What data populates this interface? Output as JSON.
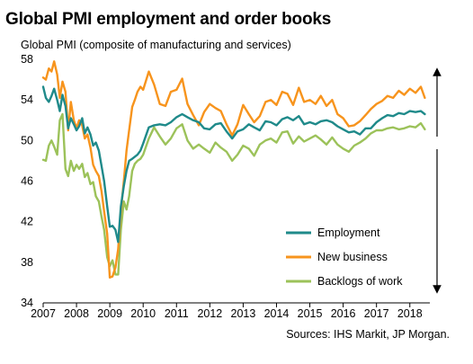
{
  "title": "Global PMI employment and order books",
  "subtitle": "Global  PMI (composite of manufacturing and services)",
  "source": "Sources: IHS Markit, JP Morgan.",
  "colors": {
    "employment": "#1f8a8a",
    "new_business": "#f7941d",
    "backlogs": "#9cc25a",
    "arrow": "#000000"
  },
  "chart_data": {
    "type": "line",
    "title": "Global PMI employment and order books",
    "ylabel": "Global  PMI (composite of manufacturing and services)",
    "xlabel": "",
    "ylim": [
      34,
      58
    ],
    "yticks": [
      34,
      38,
      42,
      46,
      50,
      54,
      58
    ],
    "xlim": [
      2007,
      2018.6
    ],
    "xticks": [
      "2007",
      "2008",
      "2009",
      "2010",
      "2011",
      "2012",
      "2013",
      "2014",
      "2015",
      "2016",
      "2017",
      "2018"
    ],
    "grid": false,
    "legend_position": "bottom-right",
    "legend": [
      "Employment",
      "New business",
      "Backlogs of work"
    ],
    "annotations": [
      "Double-headed vertical arrow on right side (above and below 50)"
    ],
    "series": [
      {
        "name": "Employment",
        "color": "#1f8a8a",
        "x": [
          2007.0,
          2007.08,
          2007.17,
          2007.25,
          2007.33,
          2007.42,
          2007.5,
          2007.58,
          2007.67,
          2007.75,
          2007.83,
          2007.92,
          2008.0,
          2008.08,
          2008.17,
          2008.25,
          2008.33,
          2008.42,
          2008.5,
          2008.58,
          2008.67,
          2008.75,
          2008.83,
          2008.92,
          2009.0,
          2009.08,
          2009.17,
          2009.25,
          2009.33,
          2009.42,
          2009.5,
          2009.58,
          2009.67,
          2009.75,
          2009.83,
          2009.92,
          2010.0,
          2010.17,
          2010.33,
          2010.5,
          2010.67,
          2010.83,
          2011.0,
          2011.17,
          2011.33,
          2011.5,
          2011.67,
          2011.83,
          2012.0,
          2012.17,
          2012.33,
          2012.5,
          2012.67,
          2012.83,
          2013.0,
          2013.17,
          2013.33,
          2013.5,
          2013.67,
          2013.83,
          2014.0,
          2014.17,
          2014.33,
          2014.5,
          2014.67,
          2014.83,
          2015.0,
          2015.17,
          2015.33,
          2015.5,
          2015.67,
          2015.83,
          2016.0,
          2016.17,
          2016.33,
          2016.5,
          2016.67,
          2016.83,
          2017.0,
          2017.17,
          2017.33,
          2017.5,
          2017.67,
          2017.83,
          2018.0,
          2018.17,
          2018.33,
          2018.45
        ],
        "values": [
          55.3,
          54.2,
          53.8,
          54.4,
          55.1,
          54.0,
          52.9,
          54.5,
          53.4,
          51.2,
          52.2,
          51.6,
          51.0,
          51.4,
          52.2,
          50.7,
          51.3,
          50.6,
          49.5,
          49.8,
          49.0,
          47.5,
          46.0,
          43.5,
          41.5,
          41.6,
          41.2,
          40.0,
          43.5,
          45.5,
          47.0,
          48.0,
          48.2,
          48.4,
          48.6,
          49.0,
          49.7,
          51.3,
          51.5,
          51.6,
          51.5,
          51.8,
          52.3,
          52.6,
          52.3,
          52.0,
          51.8,
          51.2,
          51.1,
          51.6,
          51.7,
          50.9,
          50.2,
          50.9,
          51.1,
          51.6,
          51.3,
          51.0,
          51.9,
          51.8,
          51.5,
          52.1,
          52.3,
          52.0,
          52.4,
          51.6,
          51.8,
          51.6,
          51.9,
          52.0,
          51.8,
          51.4,
          51.1,
          50.8,
          50.9,
          50.6,
          51.2,
          51.2,
          51.8,
          52.2,
          52.5,
          52.4,
          52.7,
          52.6,
          52.9,
          52.8,
          52.9,
          52.6
        ]
      },
      {
        "name": "New business",
        "color": "#f7941d",
        "x": [
          2007.0,
          2007.08,
          2007.17,
          2007.25,
          2007.33,
          2007.42,
          2007.5,
          2007.58,
          2007.67,
          2007.75,
          2007.83,
          2007.92,
          2008.0,
          2008.08,
          2008.17,
          2008.25,
          2008.33,
          2008.42,
          2008.5,
          2008.58,
          2008.67,
          2008.75,
          2008.83,
          2008.92,
          2009.0,
          2009.08,
          2009.17,
          2009.25,
          2009.33,
          2009.42,
          2009.5,
          2009.58,
          2009.67,
          2009.75,
          2009.83,
          2009.92,
          2010.0,
          2010.17,
          2010.33,
          2010.5,
          2010.67,
          2010.83,
          2011.0,
          2011.17,
          2011.33,
          2011.5,
          2011.67,
          2011.83,
          2012.0,
          2012.17,
          2012.33,
          2012.5,
          2012.67,
          2012.83,
          2013.0,
          2013.17,
          2013.33,
          2013.5,
          2013.67,
          2013.83,
          2014.0,
          2014.17,
          2014.33,
          2014.5,
          2014.67,
          2014.83,
          2015.0,
          2015.17,
          2015.33,
          2015.5,
          2015.67,
          2015.83,
          2016.0,
          2016.17,
          2016.33,
          2016.5,
          2016.67,
          2016.83,
          2017.0,
          2017.17,
          2017.33,
          2017.5,
          2017.67,
          2017.83,
          2018.0,
          2018.17,
          2018.33,
          2018.45
        ],
        "values": [
          56.2,
          56.0,
          57.1,
          56.8,
          57.8,
          56.5,
          54.2,
          55.8,
          54.8,
          51.0,
          53.8,
          52.0,
          51.2,
          52.0,
          51.5,
          50.2,
          50.6,
          49.3,
          47.6,
          47.0,
          46.5,
          45.0,
          43.0,
          40.8,
          36.5,
          36.6,
          37.5,
          39.3,
          43.0,
          46.0,
          49.0,
          51.0,
          53.3,
          54.0,
          54.8,
          55.3,
          55.0,
          56.8,
          55.5,
          53.6,
          53.4,
          54.8,
          55.0,
          56.1,
          53.6,
          52.5,
          51.5,
          52.8,
          53.6,
          53.2,
          52.9,
          51.6,
          50.5,
          51.6,
          53.5,
          52.6,
          51.8,
          52.4,
          53.8,
          54.0,
          53.5,
          54.8,
          54.6,
          53.5,
          55.2,
          53.8,
          54.0,
          53.6,
          54.4,
          53.4,
          54.0,
          52.6,
          52.2,
          51.4,
          51.5,
          51.9,
          52.5,
          53.1,
          53.6,
          53.9,
          54.4,
          54.2,
          54.9,
          54.5,
          55.1,
          54.7,
          55.3,
          54.2
        ]
      },
      {
        "name": "Backlogs of work",
        "color": "#9cc25a",
        "x": [
          2007.0,
          2007.08,
          2007.17,
          2007.25,
          2007.33,
          2007.42,
          2007.5,
          2007.58,
          2007.67,
          2007.75,
          2007.83,
          2007.92,
          2008.0,
          2008.08,
          2008.17,
          2008.25,
          2008.33,
          2008.42,
          2008.5,
          2008.58,
          2008.67,
          2008.75,
          2008.83,
          2008.92,
          2009.0,
          2009.08,
          2009.17,
          2009.25,
          2009.33,
          2009.42,
          2009.5,
          2009.58,
          2009.67,
          2009.75,
          2009.83,
          2009.92,
          2010.0,
          2010.17,
          2010.33,
          2010.5,
          2010.67,
          2010.83,
          2011.0,
          2011.17,
          2011.33,
          2011.5,
          2011.67,
          2011.83,
          2012.0,
          2012.17,
          2012.33,
          2012.5,
          2012.67,
          2012.83,
          2013.0,
          2013.17,
          2013.33,
          2013.5,
          2013.67,
          2013.83,
          2014.0,
          2014.17,
          2014.33,
          2014.5,
          2014.67,
          2014.83,
          2015.0,
          2015.17,
          2015.33,
          2015.5,
          2015.67,
          2015.83,
          2016.0,
          2016.17,
          2016.33,
          2016.5,
          2016.67,
          2016.83,
          2017.0,
          2017.17,
          2017.33,
          2017.5,
          2017.67,
          2017.83,
          2018.0,
          2018.17,
          2018.33,
          2018.45
        ],
        "values": [
          48.1,
          48.0,
          49.5,
          50.0,
          49.4,
          48.6,
          52.0,
          52.6,
          47.2,
          46.5,
          48.0,
          47.0,
          47.6,
          47.2,
          47.7,
          46.4,
          46.8,
          45.7,
          45.9,
          44.5,
          44.0,
          42.5,
          41.2,
          38.5,
          37.6,
          38.2,
          36.8,
          36.8,
          41.2,
          44.0,
          43.2,
          44.5,
          47.0,
          47.7,
          48.0,
          48.2,
          48.6,
          50.2,
          51.3,
          50.4,
          49.6,
          50.2,
          51.2,
          51.6,
          50.0,
          49.2,
          49.6,
          49.2,
          48.8,
          49.8,
          49.3,
          48.9,
          48.0,
          48.6,
          49.5,
          49.2,
          48.5,
          49.6,
          50.0,
          50.2,
          49.8,
          50.8,
          50.9,
          49.7,
          50.4,
          49.9,
          50.2,
          50.5,
          50.1,
          49.6,
          50.3,
          49.6,
          49.2,
          48.9,
          49.5,
          49.8,
          50.2,
          50.7,
          51.0,
          51.0,
          51.2,
          51.3,
          51.1,
          51.2,
          51.4,
          51.3,
          51.7,
          51.1
        ]
      }
    ]
  }
}
